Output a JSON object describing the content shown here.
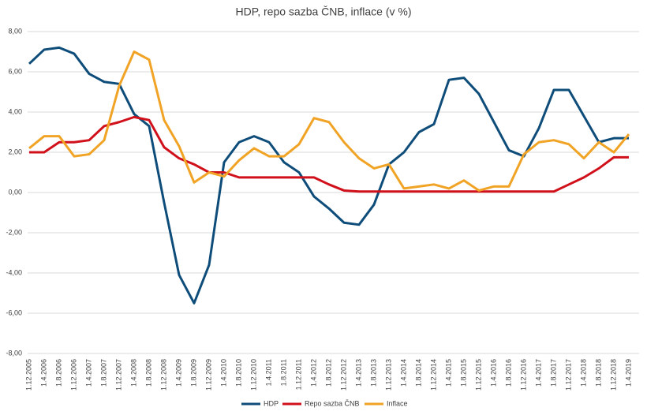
{
  "chart_data": {
    "type": "line",
    "title": "HDP, repo sazba ČNB, inflace (v %)",
    "categories": [
      "1.12.2005",
      "1.4.2006",
      "1.8.2006",
      "1.12.2006",
      "1.4.2007",
      "1.8.2007",
      "1.12.2007",
      "1.4.2008",
      "1.8.2008",
      "1.12.2008",
      "1.4.2009",
      "1.8.2009",
      "1.12.2009",
      "1.4.2010",
      "1.8.2010",
      "1.12.2010",
      "1.4.2011",
      "1.8.2011",
      "1.12.2011",
      "1.4.2012",
      "1.8.2012",
      "1.12.2012",
      "1.4.2013",
      "1.8.2013",
      "1.12.2013",
      "1.4.2014",
      "1.8.2014",
      "1.12.2014",
      "1.4.2015",
      "1.8.2015",
      "1.12.2015",
      "1.4.2016",
      "1.8.2016",
      "1.12.2016",
      "1.4.2017",
      "1.8.2017",
      "1.12.2017",
      "1.4.2018",
      "1.8.2018",
      "1.12.2018",
      "1.4.2019"
    ],
    "series": [
      {
        "name": "HDP",
        "color": "#0e4c7a",
        "values": [
          6.4,
          7.1,
          7.2,
          6.9,
          5.9,
          5.5,
          5.4,
          3.9,
          3.3,
          -0.5,
          -4.1,
          -5.5,
          -3.6,
          1.5,
          2.5,
          2.8,
          2.5,
          1.5,
          1.0,
          -0.2,
          -0.8,
          -1.5,
          -1.6,
          -0.6,
          1.4,
          2.0,
          3.0,
          3.4,
          5.6,
          5.7,
          4.9,
          3.5,
          2.1,
          1.8,
          3.2,
          5.1,
          5.1,
          3.8,
          2.5,
          2.7,
          2.7
        ]
      },
      {
        "name": "Repo sazba ČNB",
        "color": "#d0111b",
        "values": [
          2.0,
          2.0,
          2.5,
          2.5,
          2.6,
          3.3,
          3.5,
          3.75,
          3.6,
          2.25,
          1.7,
          1.4,
          1.0,
          1.0,
          0.75,
          0.75,
          0.75,
          0.75,
          0.75,
          0.75,
          0.4,
          0.1,
          0.05,
          0.05,
          0.05,
          0.05,
          0.05,
          0.05,
          0.05,
          0.05,
          0.05,
          0.05,
          0.05,
          0.05,
          0.05,
          0.05,
          0.4,
          0.75,
          1.2,
          1.75,
          1.75
        ]
      },
      {
        "name": "Inflace",
        "color": "#f0a324",
        "values": [
          2.2,
          2.8,
          2.8,
          1.8,
          1.9,
          2.6,
          5.3,
          7.0,
          6.6,
          3.6,
          2.3,
          0.5,
          1.0,
          0.8,
          1.6,
          2.2,
          1.8,
          1.8,
          2.4,
          3.7,
          3.5,
          2.5,
          1.7,
          1.2,
          1.4,
          0.2,
          0.3,
          0.4,
          0.2,
          0.6,
          0.1,
          0.3,
          0.3,
          1.9,
          2.5,
          2.6,
          2.4,
          1.7,
          2.5,
          2.0,
          2.9
        ]
      }
    ],
    "ylim": [
      -8,
      8
    ],
    "yticks": [
      {
        "value": -8,
        "label": "-8,00"
      },
      {
        "value": -6,
        "label": "-6,00"
      },
      {
        "value": -4,
        "label": "-4,00"
      },
      {
        "value": -2,
        "label": "-2,00"
      },
      {
        "value": 0,
        "label": "0,00"
      },
      {
        "value": 2,
        "label": "2,00"
      },
      {
        "value": 4,
        "label": "4,00"
      },
      {
        "value": 6,
        "label": "6,00"
      },
      {
        "value": 8,
        "label": "8,00"
      }
    ],
    "grid": true,
    "legend": "bottom"
  }
}
